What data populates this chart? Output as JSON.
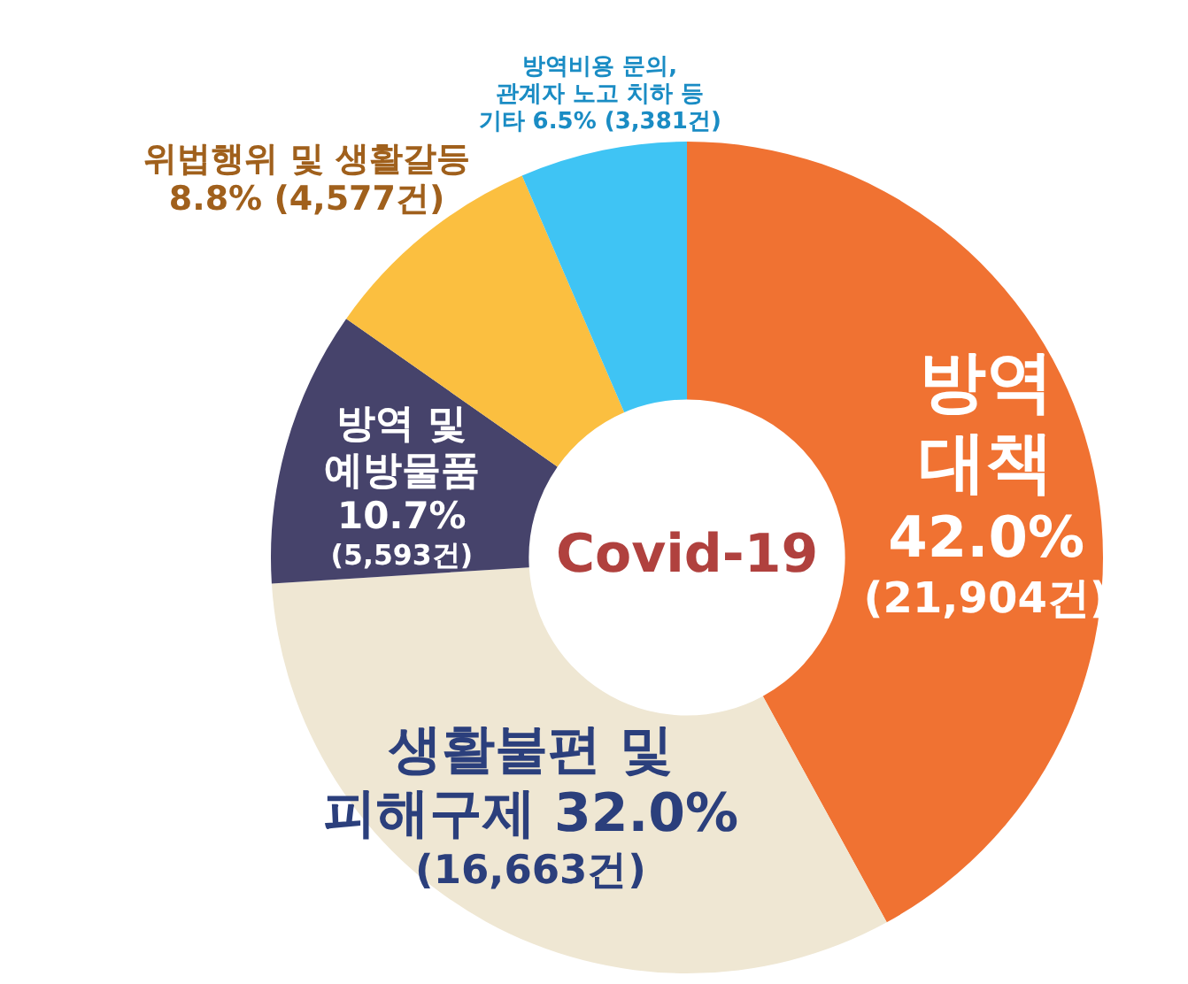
{
  "chart_data": {
    "type": "donut",
    "title": "Covid-19",
    "categories": [
      "방역\n대책",
      "생활불편 및\n피해구제",
      "방역 및\n예방물품",
      "위법행위 및 생활갈등",
      "방역비용 문의,\n관계자 노고 치하 등\n기타"
    ],
    "values": [
      21904,
      16663,
      5593,
      4577,
      3381
    ],
    "value_labels": [
      "42.0%\n(21,904건)",
      "32.0%\n(16,663건)",
      "10.7%\n(5,593건)",
      "8.8% (4,577건)",
      "6.5% (3,381건)"
    ],
    "colors": [
      "#f07232",
      "#efe7d3",
      "#46436b",
      "#fbbf40",
      "#3fc4f4"
    ],
    "legend": false
  }
}
